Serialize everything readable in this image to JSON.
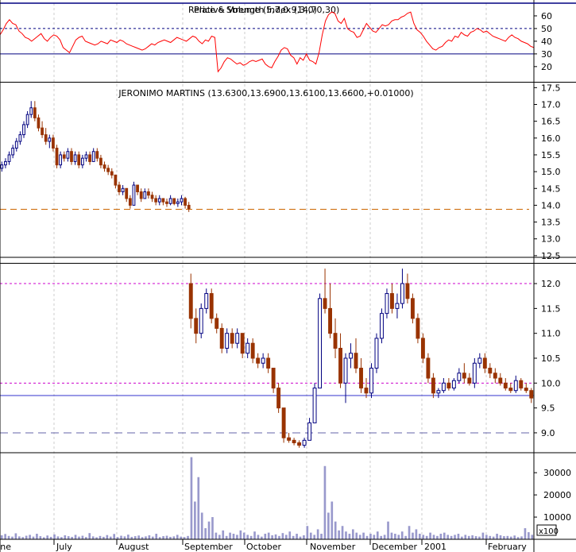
{
  "chart_data": [
    {
      "type": "line",
      "title": "Relative Strength Index (14,70,30)",
      "overlay_title": "Price & Volume (5,7,0.9,3,0)",
      "ylim": [
        8,
        70
      ],
      "y_ticks": [
        20,
        30,
        40,
        50,
        60
      ],
      "reference_lines": [
        30,
        50
      ],
      "series": [
        {
          "name": "",
          "color": "#ff0000",
          "values": [
            45,
            49,
            54,
            57,
            54,
            53,
            48,
            46,
            43,
            42,
            40,
            42,
            44,
            46,
            42,
            40,
            43,
            45,
            44,
            41,
            35,
            33,
            31,
            36,
            41,
            43,
            44,
            40,
            39,
            38,
            37,
            38,
            40,
            39,
            38,
            41,
            40,
            39,
            41,
            40,
            38,
            37,
            36,
            35,
            34,
            33,
            34,
            36,
            38,
            37,
            39,
            40,
            41,
            40,
            39,
            41,
            43,
            42,
            41,
            40,
            42,
            44,
            43,
            40,
            38,
            41,
            40,
            44,
            43,
            16,
            19,
            24,
            27,
            26,
            24,
            22,
            23,
            21,
            22,
            24,
            25,
            24,
            25,
            26,
            22,
            20,
            19,
            24,
            28,
            33,
            35,
            34,
            29,
            27,
            22,
            27,
            25,
            30,
            25,
            24,
            22,
            31,
            45,
            56,
            61,
            63,
            62,
            56,
            54,
            58,
            50,
            48,
            47,
            43,
            44,
            49,
            54,
            51,
            48,
            47,
            50,
            53,
            52,
            53,
            56,
            57,
            57,
            59,
            60,
            62,
            63,
            54,
            49,
            47,
            44,
            40,
            37,
            34,
            33,
            35,
            36,
            39,
            41,
            40,
            44,
            43,
            47,
            45,
            44,
            47,
            48,
            50,
            49,
            47,
            48,
            46,
            44,
            43,
            42,
            41,
            40,
            43,
            45,
            43,
            42,
            40,
            39,
            38,
            36,
            35
          ]
        }
      ]
    },
    {
      "type": "candlestick",
      "title": "JERONIMO MARTINS (13.6300,13.6900,13.6100,13.6600,+0.01000)",
      "ylim": [
        12.45,
        17.65
      ],
      "y_ticks": [
        12.5,
        13.0,
        13.5,
        14.0,
        14.5,
        15.0,
        15.5,
        16.0,
        16.5,
        17.0,
        17.5
      ],
      "reference_lines": [
        13.88
      ],
      "candles": [
        {
          "o": 15.1,
          "h": 15.3,
          "l": 15.0,
          "c": 15.2
        },
        {
          "o": 15.2,
          "h": 15.4,
          "l": 15.1,
          "c": 15.3
        },
        {
          "o": 15.3,
          "h": 15.6,
          "l": 15.2,
          "c": 15.5
        },
        {
          "o": 15.5,
          "h": 15.8,
          "l": 15.4,
          "c": 15.7
        },
        {
          "o": 15.7,
          "h": 16.0,
          "l": 15.6,
          "c": 15.9
        },
        {
          "o": 15.9,
          "h": 16.2,
          "l": 15.8,
          "c": 16.1
        },
        {
          "o": 16.1,
          "h": 16.5,
          "l": 16.0,
          "c": 16.4
        },
        {
          "o": 16.4,
          "h": 16.8,
          "l": 16.3,
          "c": 16.7
        },
        {
          "o": 16.7,
          "h": 17.1,
          "l": 16.6,
          "c": 16.9
        },
        {
          "o": 16.9,
          "h": 17.1,
          "l": 16.5,
          "c": 16.6
        },
        {
          "o": 16.6,
          "h": 16.7,
          "l": 16.2,
          "c": 16.3
        },
        {
          "o": 16.3,
          "h": 16.5,
          "l": 16.0,
          "c": 16.1
        },
        {
          "o": 16.1,
          "h": 16.3,
          "l": 15.8,
          "c": 15.9
        },
        {
          "o": 15.9,
          "h": 16.1,
          "l": 15.7,
          "c": 16.0
        },
        {
          "o": 16.0,
          "h": 16.1,
          "l": 15.6,
          "c": 15.7
        },
        {
          "o": 15.7,
          "h": 15.8,
          "l": 15.1,
          "c": 15.2
        },
        {
          "o": 15.2,
          "h": 15.6,
          "l": 15.1,
          "c": 15.5
        },
        {
          "o": 15.5,
          "h": 15.6,
          "l": 15.3,
          "c": 15.4
        },
        {
          "o": 15.4,
          "h": 15.7,
          "l": 15.3,
          "c": 15.6
        },
        {
          "o": 15.6,
          "h": 15.7,
          "l": 15.2,
          "c": 15.3
        },
        {
          "o": 15.3,
          "h": 15.6,
          "l": 15.2,
          "c": 15.5
        },
        {
          "o": 15.5,
          "h": 15.6,
          "l": 15.1,
          "c": 15.2
        },
        {
          "o": 15.2,
          "h": 15.5,
          "l": 15.1,
          "c": 15.4
        },
        {
          "o": 15.4,
          "h": 15.6,
          "l": 15.3,
          "c": 15.5
        },
        {
          "o": 15.5,
          "h": 15.6,
          "l": 15.2,
          "c": 15.3
        },
        {
          "o": 15.3,
          "h": 15.7,
          "l": 15.3,
          "c": 15.6
        },
        {
          "o": 15.6,
          "h": 15.7,
          "l": 15.3,
          "c": 15.4
        },
        {
          "o": 15.4,
          "h": 15.5,
          "l": 15.1,
          "c": 15.2
        },
        {
          "o": 15.2,
          "h": 15.3,
          "l": 15.0,
          "c": 15.1
        },
        {
          "o": 15.1,
          "h": 15.2,
          "l": 14.9,
          "c": 15.0
        },
        {
          "o": 15.0,
          "h": 15.1,
          "l": 14.8,
          "c": 14.9
        },
        {
          "o": 14.9,
          "h": 14.9,
          "l": 14.5,
          "c": 14.6
        },
        {
          "o": 14.6,
          "h": 14.7,
          "l": 14.3,
          "c": 14.4
        },
        {
          "o": 14.4,
          "h": 14.6,
          "l": 14.3,
          "c": 14.5
        },
        {
          "o": 14.5,
          "h": 14.5,
          "l": 14.1,
          "c": 14.2
        },
        {
          "o": 14.2,
          "h": 14.3,
          "l": 13.9,
          "c": 14.0
        },
        {
          "o": 14.0,
          "h": 14.7,
          "l": 14.0,
          "c": 14.6
        },
        {
          "o": 14.6,
          "h": 14.6,
          "l": 14.3,
          "c": 14.4
        },
        {
          "o": 14.4,
          "h": 14.5,
          "l": 14.1,
          "c": 14.2
        },
        {
          "o": 14.2,
          "h": 14.5,
          "l": 14.2,
          "c": 14.4
        },
        {
          "o": 14.4,
          "h": 14.5,
          "l": 14.2,
          "c": 14.3
        },
        {
          "o": 14.3,
          "h": 14.4,
          "l": 14.1,
          "c": 14.2
        },
        {
          "o": 14.2,
          "h": 14.3,
          "l": 14.0,
          "c": 14.1
        },
        {
          "o": 14.1,
          "h": 14.3,
          "l": 14.0,
          "c": 14.2
        },
        {
          "o": 14.2,
          "h": 14.2,
          "l": 14.0,
          "c": 14.1
        },
        {
          "o": 14.1,
          "h": 14.2,
          "l": 13.95,
          "c": 14.05
        },
        {
          "o": 14.05,
          "h": 14.3,
          "l": 14.0,
          "c": 14.2
        },
        {
          "o": 14.2,
          "h": 14.2,
          "l": 14.0,
          "c": 14.05
        },
        {
          "o": 14.05,
          "h": 14.2,
          "l": 13.95,
          "c": 14.1
        },
        {
          "o": 14.1,
          "h": 14.3,
          "l": 14.0,
          "c": 14.2
        },
        {
          "o": 14.2,
          "h": 14.25,
          "l": 13.9,
          "c": 14.0
        },
        {
          "o": 14.0,
          "h": 14.1,
          "l": 13.8,
          "c": 13.9
        }
      ]
    },
    {
      "type": "candlestick",
      "title": "",
      "ylim": [
        8.6,
        12.4
      ],
      "y_ticks": [
        9.0,
        9.5,
        10.0,
        10.5,
        11.0,
        11.5,
        12.0
      ],
      "reference_lines": [
        12.0,
        10.0,
        9.75,
        9.0
      ],
      "candles": [
        {
          "o": 12.0,
          "h": 12.2,
          "l": 11.1,
          "c": 11.3
        },
        {
          "o": 11.3,
          "h": 11.5,
          "l": 10.8,
          "c": 11.0
        },
        {
          "o": 11.0,
          "h": 11.6,
          "l": 10.9,
          "c": 11.5
        },
        {
          "o": 11.5,
          "h": 11.9,
          "l": 11.4,
          "c": 11.8
        },
        {
          "o": 11.8,
          "h": 11.9,
          "l": 11.2,
          "c": 11.3
        },
        {
          "o": 11.3,
          "h": 11.4,
          "l": 11.0,
          "c": 11.1
        },
        {
          "o": 11.1,
          "h": 11.2,
          "l": 10.6,
          "c": 10.7
        },
        {
          "o": 10.7,
          "h": 11.1,
          "l": 10.6,
          "c": 11.0
        },
        {
          "o": 11.0,
          "h": 11.1,
          "l": 10.7,
          "c": 10.8
        },
        {
          "o": 10.8,
          "h": 11.1,
          "l": 10.7,
          "c": 11.0
        },
        {
          "o": 11.0,
          "h": 11.0,
          "l": 10.5,
          "c": 10.6
        },
        {
          "o": 10.6,
          "h": 10.9,
          "l": 10.5,
          "c": 10.8
        },
        {
          "o": 10.8,
          "h": 10.9,
          "l": 10.4,
          "c": 10.5
        },
        {
          "o": 10.5,
          "h": 10.6,
          "l": 10.3,
          "c": 10.4
        },
        {
          "o": 10.4,
          "h": 10.6,
          "l": 10.3,
          "c": 10.5
        },
        {
          "o": 10.5,
          "h": 10.6,
          "l": 10.2,
          "c": 10.3
        },
        {
          "o": 10.3,
          "h": 10.3,
          "l": 9.8,
          "c": 9.9
        },
        {
          "o": 9.9,
          "h": 10.0,
          "l": 9.4,
          "c": 9.5
        },
        {
          "o": 9.5,
          "h": 9.5,
          "l": 8.8,
          "c": 8.9
        },
        {
          "o": 8.9,
          "h": 9.0,
          "l": 8.8,
          "c": 8.85
        },
        {
          "o": 8.85,
          "h": 8.9,
          "l": 8.75,
          "c": 8.8
        },
        {
          "o": 8.8,
          "h": 8.85,
          "l": 8.7,
          "c": 8.75
        },
        {
          "o": 8.75,
          "h": 8.9,
          "l": 8.7,
          "c": 8.85
        },
        {
          "o": 8.85,
          "h": 9.3,
          "l": 8.85,
          "c": 9.2
        },
        {
          "o": 9.2,
          "h": 10.0,
          "l": 9.2,
          "c": 9.9
        },
        {
          "o": 9.9,
          "h": 11.8,
          "l": 9.9,
          "c": 11.7
        },
        {
          "o": 11.7,
          "h": 12.3,
          "l": 11.4,
          "c": 11.5
        },
        {
          "o": 11.5,
          "h": 12.0,
          "l": 10.9,
          "c": 11.0
        },
        {
          "o": 11.0,
          "h": 11.3,
          "l": 10.5,
          "c": 10.7
        },
        {
          "o": 10.7,
          "h": 11.0,
          "l": 9.9,
          "c": 10.0
        },
        {
          "o": 10.0,
          "h": 10.6,
          "l": 9.6,
          "c": 10.5
        },
        {
          "o": 10.5,
          "h": 10.8,
          "l": 10.3,
          "c": 10.6
        },
        {
          "o": 10.6,
          "h": 10.9,
          "l": 10.2,
          "c": 10.3
        },
        {
          "o": 10.3,
          "h": 10.5,
          "l": 9.8,
          "c": 9.9
        },
        {
          "o": 9.9,
          "h": 10.1,
          "l": 9.7,
          "c": 9.8
        },
        {
          "o": 9.8,
          "h": 10.4,
          "l": 9.7,
          "c": 10.3
        },
        {
          "o": 10.3,
          "h": 11.0,
          "l": 10.2,
          "c": 10.9
        },
        {
          "o": 10.9,
          "h": 11.5,
          "l": 10.8,
          "c": 11.4
        },
        {
          "o": 11.4,
          "h": 11.9,
          "l": 11.3,
          "c": 11.8
        },
        {
          "o": 11.8,
          "h": 12.0,
          "l": 11.4,
          "c": 11.5
        },
        {
          "o": 11.5,
          "h": 11.8,
          "l": 11.3,
          "c": 11.6
        },
        {
          "o": 11.6,
          "h": 12.3,
          "l": 11.5,
          "c": 12.0
        },
        {
          "o": 12.0,
          "h": 12.2,
          "l": 11.6,
          "c": 11.7
        },
        {
          "o": 11.7,
          "h": 11.8,
          "l": 11.2,
          "c": 11.3
        },
        {
          "o": 11.3,
          "h": 11.4,
          "l": 10.8,
          "c": 10.9
        },
        {
          "o": 10.9,
          "h": 11.0,
          "l": 10.4,
          "c": 10.5
        },
        {
          "o": 10.5,
          "h": 10.6,
          "l": 10.0,
          "c": 10.1
        },
        {
          "o": 10.1,
          "h": 10.2,
          "l": 9.7,
          "c": 9.8
        },
        {
          "o": 9.8,
          "h": 9.9,
          "l": 9.7,
          "c": 9.85
        },
        {
          "o": 9.85,
          "h": 10.1,
          "l": 9.8,
          "c": 10.0
        },
        {
          "o": 10.0,
          "h": 10.1,
          "l": 9.85,
          "c": 9.9
        },
        {
          "o": 9.9,
          "h": 10.1,
          "l": 9.85,
          "c": 10.05
        },
        {
          "o": 10.05,
          "h": 10.3,
          "l": 10.0,
          "c": 10.2
        },
        {
          "o": 10.2,
          "h": 10.4,
          "l": 10.0,
          "c": 10.1
        },
        {
          "o": 10.1,
          "h": 10.2,
          "l": 9.95,
          "c": 10.0
        },
        {
          "o": 10.0,
          "h": 10.5,
          "l": 9.9,
          "c": 10.4
        },
        {
          "o": 10.4,
          "h": 10.6,
          "l": 10.3,
          "c": 10.5
        },
        {
          "o": 10.5,
          "h": 10.6,
          "l": 10.2,
          "c": 10.3
        },
        {
          "o": 10.3,
          "h": 10.4,
          "l": 10.1,
          "c": 10.2
        },
        {
          "o": 10.2,
          "h": 10.3,
          "l": 10.0,
          "c": 10.1
        },
        {
          "o": 10.1,
          "h": 10.2,
          "l": 9.95,
          "c": 10.0
        },
        {
          "o": 10.0,
          "h": 10.1,
          "l": 9.85,
          "c": 9.9
        },
        {
          "o": 9.9,
          "h": 10.0,
          "l": 9.8,
          "c": 9.85
        },
        {
          "o": 9.85,
          "h": 10.15,
          "l": 9.8,
          "c": 10.05
        },
        {
          "o": 10.05,
          "h": 10.1,
          "l": 9.85,
          "c": 9.9
        },
        {
          "o": 9.9,
          "h": 10.0,
          "l": 9.8,
          "c": 9.85
        },
        {
          "o": 9.85,
          "h": 9.9,
          "l": 9.6,
          "c": 9.7
        }
      ]
    },
    {
      "type": "bar",
      "title": "",
      "ylim": [
        0,
        39000
      ],
      "y_ticks": [
        10000,
        20000,
        30000
      ],
      "unit_label": "x100",
      "values": [
        1800,
        2400,
        1500,
        1200,
        2700,
        1300,
        1000,
        1600,
        2000,
        1200,
        2500,
        1400,
        900,
        1700,
        1100,
        2200,
        1300,
        1000,
        1800,
        1400,
        1100,
        2000,
        1200,
        1600,
        1000,
        2800,
        1300,
        900,
        1500,
        1100,
        1900,
        1200,
        2400,
        1000,
        1600,
        1300,
        2100,
        1100,
        1400,
        1700,
        1000,
        1300,
        1800,
        1200,
        2500,
        1000,
        1400,
        1600,
        1100,
        1300,
        2000,
        1200,
        1000,
        1500,
        37000,
        17000,
        28000,
        12000,
        5000,
        8000,
        10000,
        3000,
        2000,
        4000,
        1500,
        3000,
        2500,
        2000,
        4000,
        3000,
        2000,
        1500,
        3500,
        2000,
        1200,
        2500,
        3000,
        1800,
        2200,
        1500,
        2800,
        2000,
        3500,
        1500,
        2500,
        1200,
        1800,
        6000,
        3000,
        2000,
        4500,
        2500,
        33000,
        12000,
        17000,
        8000,
        4000,
        6000,
        3500,
        2500,
        4500,
        3000,
        2000,
        3000,
        1500,
        2500,
        2000,
        3500,
        1500,
        2000,
        8000,
        3000,
        2500,
        2000,
        3500,
        1500,
        6000,
        3000,
        4500,
        2500,
        2000,
        1500,
        3000,
        2000,
        1500,
        2500,
        3000,
        2000,
        1500,
        2000,
        2500,
        1200,
        2000,
        1500,
        1800,
        1400,
        1200,
        3000,
        2000,
        1500,
        1200,
        2500,
        1800,
        1400,
        1500,
        1200,
        1700,
        1000,
        1300,
        5000,
        3200,
        2000
      ]
    }
  ],
  "x_axis": {
    "labels": [
      "June",
      "July",
      "August",
      "September",
      "October",
      "November",
      "December",
      "2001",
      "February"
    ]
  }
}
